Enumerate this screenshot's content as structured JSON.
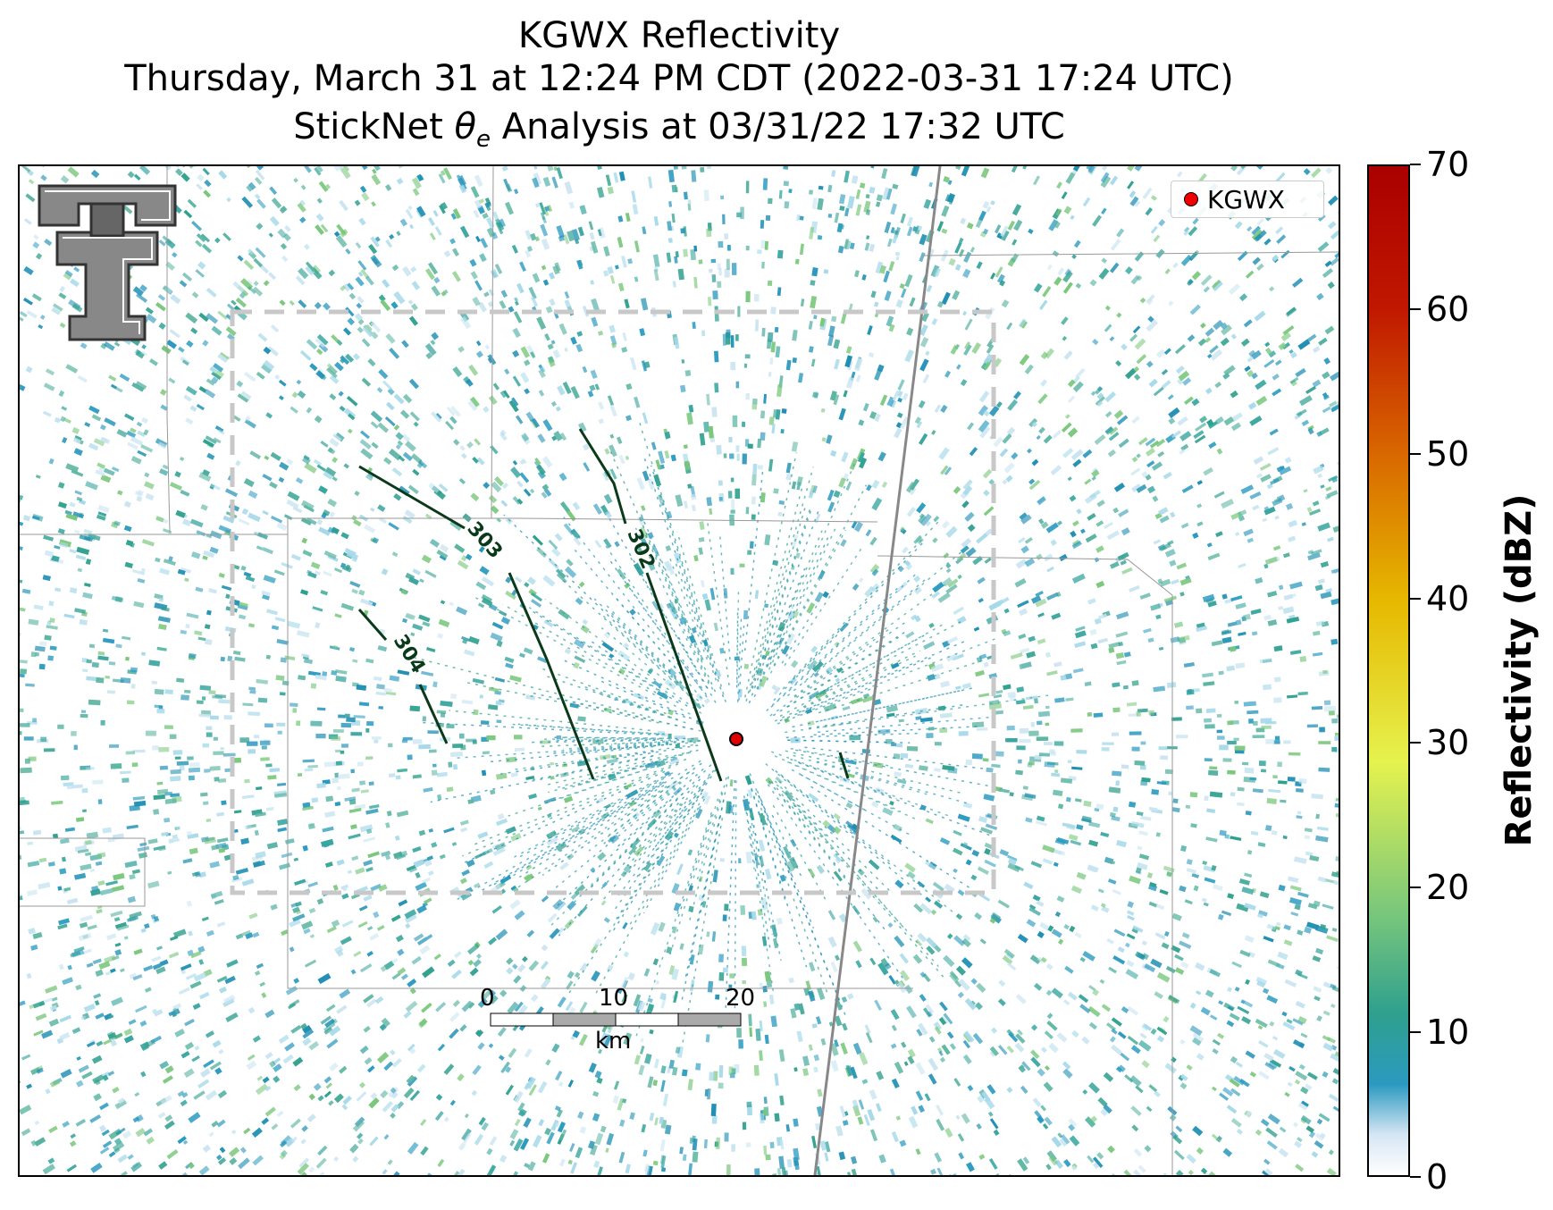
{
  "title": {
    "line1": "KGWX Reflectivity",
    "line2": "Thursday, March 31 at 12:24 PM CDT (2022-03-31 17:24 UTC)",
    "line3_prefix": "StickNet ",
    "line3_theta": "θ",
    "line3_sub": "e",
    "line3_suffix": " Analysis at 03/31/22 17:32 UTC"
  },
  "legend": {
    "label": "KGWX",
    "marker_color": "#e00000"
  },
  "colorbar": {
    "label": "Reflectivity (dBZ)",
    "ticks": [
      "0",
      "10",
      "20",
      "30",
      "40",
      "50",
      "60",
      "70"
    ],
    "range": [
      0,
      70
    ]
  },
  "contours": [
    {
      "label": "302"
    },
    {
      "label": "303"
    },
    {
      "label": "304"
    }
  ],
  "scalebar": {
    "ticks": [
      "0",
      "10",
      "20"
    ],
    "unit": "km"
  },
  "colors": {
    "contour": "#0a3a1a",
    "analysis_box": "#c8c8c8",
    "boundary": "#999999"
  },
  "logo": {
    "name": "texas-tech-double-t-logo"
  }
}
